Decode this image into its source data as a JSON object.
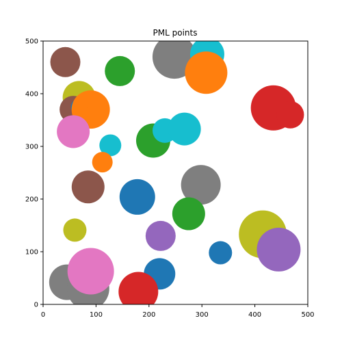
{
  "chart_data": {
    "type": "scatter",
    "title": "PML points",
    "xlabel": "",
    "ylabel": "",
    "xlim": [
      0,
      500
    ],
    "ylim": [
      0,
      500
    ],
    "xticks": [
      "0",
      "100",
      "200",
      "300",
      "400",
      "500"
    ],
    "yticks": [
      "0",
      "100",
      "200",
      "300",
      "400",
      "500"
    ],
    "grid": false,
    "points": [
      {
        "x": 42,
        "y": 460,
        "r": 22,
        "color": "#8c564b"
      },
      {
        "x": 145,
        "y": 443,
        "r": 22,
        "color": "#2ca02c"
      },
      {
        "x": 248,
        "y": 470,
        "r": 32,
        "color": "#7f7f7f"
      },
      {
        "x": 310,
        "y": 475,
        "r": 25,
        "color": "#17becf"
      },
      {
        "x": 308,
        "y": 440,
        "r": 31,
        "color": "#ff7f0e"
      },
      {
        "x": 435,
        "y": 373,
        "r": 33,
        "color": "#d62728"
      },
      {
        "x": 467,
        "y": 360,
        "r": 20,
        "color": "#d62728"
      },
      {
        "x": 68,
        "y": 393,
        "r": 24,
        "color": "#bcbd22"
      },
      {
        "x": 57,
        "y": 370,
        "r": 20,
        "color": "#8c564b"
      },
      {
        "x": 68,
        "y": 375,
        "r": 12,
        "color": "#1f77b4"
      },
      {
        "x": 90,
        "y": 370,
        "r": 28,
        "color": "#ff7f0e"
      },
      {
        "x": 70,
        "y": 365,
        "r": 12,
        "color": "#ff7f0e"
      },
      {
        "x": 57,
        "y": 328,
        "r": 24,
        "color": "#e377c2"
      },
      {
        "x": 127,
        "y": 302,
        "r": 16,
        "color": "#17becf"
      },
      {
        "x": 112,
        "y": 270,
        "r": 15,
        "color": "#ff7f0e"
      },
      {
        "x": 208,
        "y": 311,
        "r": 25,
        "color": "#2ca02c"
      },
      {
        "x": 230,
        "y": 330,
        "r": 18,
        "color": "#17becf"
      },
      {
        "x": 267,
        "y": 333,
        "r": 24,
        "color": "#17becf"
      },
      {
        "x": 85,
        "y": 223,
        "r": 24,
        "color": "#8c564b"
      },
      {
        "x": 178,
        "y": 204,
        "r": 26,
        "color": "#1f77b4"
      },
      {
        "x": 298,
        "y": 227,
        "r": 29,
        "color": "#7f7f7f"
      },
      {
        "x": 275,
        "y": 172,
        "r": 24,
        "color": "#2ca02c"
      },
      {
        "x": 60,
        "y": 141,
        "r": 17,
        "color": "#bcbd22"
      },
      {
        "x": 222,
        "y": 130,
        "r": 22,
        "color": "#9467bd"
      },
      {
        "x": 335,
        "y": 98,
        "r": 17,
        "color": "#1f77b4"
      },
      {
        "x": 415,
        "y": 133,
        "r": 35,
        "color": "#bcbd22"
      },
      {
        "x": 445,
        "y": 104,
        "r": 32,
        "color": "#9467bd"
      },
      {
        "x": 220,
        "y": 58,
        "r": 23,
        "color": "#1f77b4"
      },
      {
        "x": 180,
        "y": 24,
        "r": 29,
        "color": "#d62728"
      },
      {
        "x": 45,
        "y": 42,
        "r": 26,
        "color": "#7f7f7f"
      },
      {
        "x": 80,
        "y": 38,
        "r": 22,
        "color": "#8c564b"
      },
      {
        "x": 85,
        "y": 30,
        "r": 31,
        "color": "#7f7f7f"
      },
      {
        "x": 90,
        "y": 63,
        "r": 34,
        "color": "#e377c2"
      }
    ]
  }
}
